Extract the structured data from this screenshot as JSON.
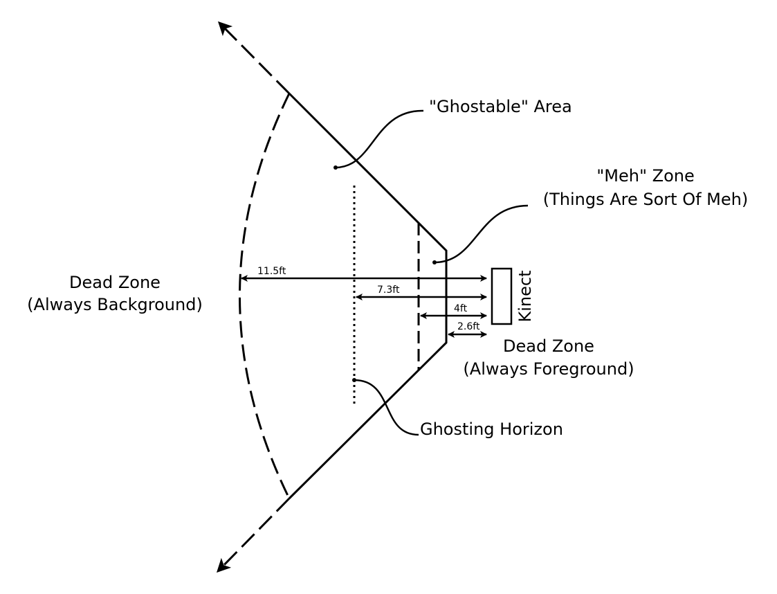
{
  "labels": {
    "ghostable_area": "\"Ghostable\" Area",
    "meh_zone_title": "\"Meh\" Zone",
    "meh_zone_sub": "(Things Are Sort Of Meh)",
    "dead_zone_bg_title": "Dead Zone",
    "dead_zone_bg_sub": "(Always Background)",
    "dead_zone_fg_title": "Dead Zone",
    "dead_zone_fg_sub": "(Always Foreground)",
    "ghosting_horizon": "Ghosting Horizon",
    "kinect": "Kinect"
  },
  "distances": {
    "d_11_5": "11.5ft",
    "d_7_3": "7.3ft",
    "d_4": "4ft",
    "d_2_6": "2.6ft"
  }
}
